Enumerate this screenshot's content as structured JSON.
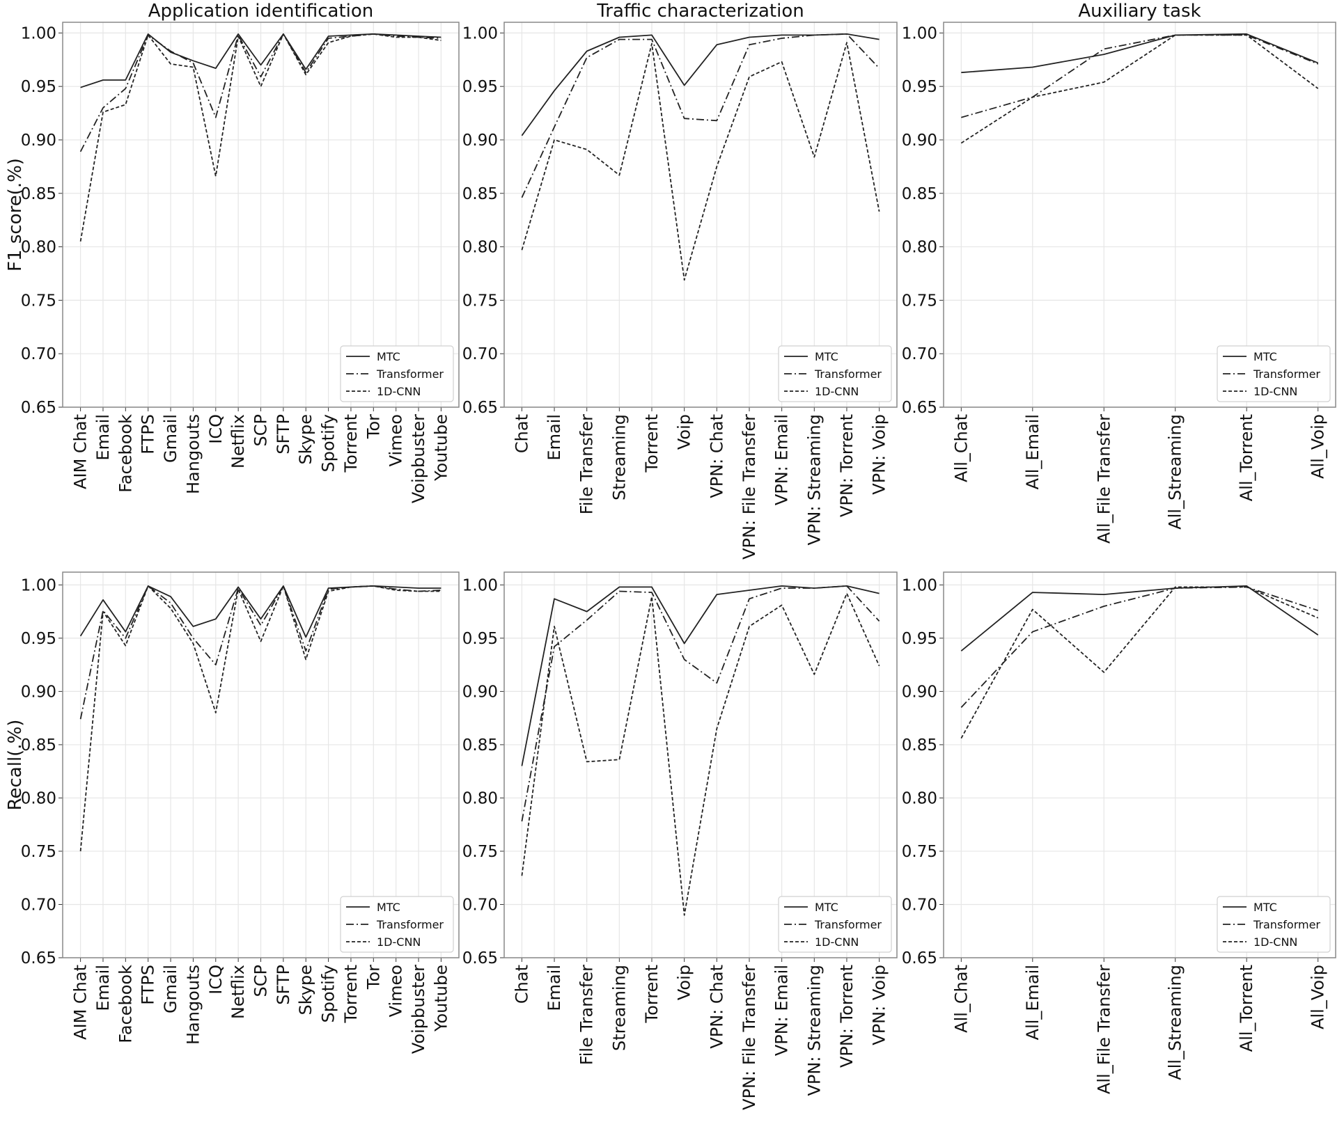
{
  "legend_position": "lower-right",
  "line_color": "#222222",
  "chart_data": [
    {
      "type": "line",
      "title": "Application identification",
      "xlabel": "",
      "ylabel": "F1 score(.%)",
      "ylim": [
        0.65,
        1.01
      ],
      "yticks": [
        "0.65",
        "0.70",
        "0.75",
        "0.80",
        "0.85",
        "0.90",
        "0.95",
        "1.00"
      ],
      "grid": true,
      "categories": [
        "AIM Chat",
        "Email",
        "Facebook",
        "FTPS",
        "Gmail",
        "Hangouts",
        "ICQ",
        "Netflix",
        "SCP",
        "SFTP",
        "Skype",
        "Spotify",
        "Torrent",
        "Tor",
        "Vimeo",
        "Voipbuster",
        "Youtube"
      ],
      "series": [
        {
          "name": "MTC",
          "style": "solid",
          "values": [
            0.949,
            0.956,
            0.956,
            0.999,
            0.982,
            0.974,
            0.967,
            0.999,
            0.97,
            0.999,
            0.966,
            0.997,
            0.998,
            0.999,
            0.998,
            0.997,
            0.996
          ]
        },
        {
          "name": "Transformer",
          "style": "dashdot",
          "values": [
            0.889,
            0.93,
            0.948,
            0.998,
            0.983,
            0.972,
            0.921,
            0.998,
            0.959,
            0.999,
            0.963,
            0.995,
            0.997,
            0.999,
            0.997,
            0.996,
            0.995
          ]
        },
        {
          "name": "1D-CNN",
          "style": "dashed",
          "values": [
            0.805,
            0.926,
            0.933,
            0.998,
            0.971,
            0.968,
            0.866,
            0.997,
            0.95,
            0.999,
            0.961,
            0.991,
            0.997,
            0.999,
            0.996,
            0.996,
            0.993
          ]
        }
      ]
    },
    {
      "type": "line",
      "title": "Traffic characterization",
      "xlabel": "",
      "ylabel": "",
      "ylim": [
        0.65,
        1.01
      ],
      "yticks": [
        "0.65",
        "0.70",
        "0.75",
        "0.80",
        "0.85",
        "0.90",
        "0.95",
        "1.00"
      ],
      "grid": true,
      "categories": [
        "Chat",
        "Email",
        "File Transfer",
        "Streaming",
        "Torrent",
        "Voip",
        "VPN: Chat",
        "VPN: File Transfer",
        "VPN: Email",
        "VPN: Streaming",
        "VPN: Torrent",
        "VPN: Voip"
      ],
      "series": [
        {
          "name": "MTC",
          "style": "solid",
          "values": [
            0.904,
            0.946,
            0.983,
            0.996,
            0.998,
            0.951,
            0.989,
            0.996,
            0.998,
            0.998,
            0.999,
            0.994
          ]
        },
        {
          "name": "Transformer",
          "style": "dashdot",
          "values": [
            0.846,
            0.912,
            0.977,
            0.994,
            0.994,
            0.92,
            0.918,
            0.989,
            0.995,
            0.998,
            0.999,
            0.967
          ]
        },
        {
          "name": "1D-CNN",
          "style": "dashed",
          "values": [
            0.797,
            0.9,
            0.891,
            0.867,
            0.99,
            0.769,
            0.875,
            0.959,
            0.973,
            0.884,
            0.991,
            0.833
          ]
        }
      ]
    },
    {
      "type": "line",
      "title": "Auxiliary task",
      "xlabel": "",
      "ylabel": "",
      "ylim": [
        0.65,
        1.01
      ],
      "yticks": [
        "0.65",
        "0.70",
        "0.75",
        "0.80",
        "0.85",
        "0.90",
        "0.95",
        "1.00"
      ],
      "grid": true,
      "categories": [
        "All_Chat",
        "All_Email",
        "All_File Transfer",
        "All_Streaming",
        "All_Torrent",
        "All_Voip"
      ],
      "series": [
        {
          "name": "MTC",
          "style": "solid",
          "values": [
            0.963,
            0.968,
            0.98,
            0.998,
            0.999,
            0.972
          ]
        },
        {
          "name": "Transformer",
          "style": "dashdot",
          "values": [
            0.921,
            0.94,
            0.985,
            0.998,
            0.998,
            0.971
          ]
        },
        {
          "name": "1D-CNN",
          "style": "dashed",
          "values": [
            0.897,
            0.94,
            0.954,
            0.998,
            0.998,
            0.948
          ]
        }
      ]
    },
    {
      "type": "line",
      "title": "",
      "xlabel": "",
      "ylabel": "Recall(.%)",
      "ylim": [
        0.65,
        1.012
      ],
      "yticks": [
        "0.65",
        "0.70",
        "0.75",
        "0.80",
        "0.85",
        "0.90",
        "0.95",
        "1.00"
      ],
      "grid": true,
      "categories": [
        "AIM Chat",
        "Email",
        "Facebook",
        "FTPS",
        "Gmail",
        "Hangouts",
        "ICQ",
        "Netflix",
        "SCP",
        "SFTP",
        "Skype",
        "Spotify",
        "Torrent",
        "Tor",
        "Vimeo",
        "Voipbuster",
        "Youtube"
      ],
      "series": [
        {
          "name": "MTC",
          "style": "solid",
          "values": [
            0.952,
            0.986,
            0.956,
            0.999,
            0.989,
            0.961,
            0.968,
            0.998,
            0.968,
            0.999,
            0.951,
            0.997,
            0.998,
            0.999,
            0.998,
            0.997,
            0.997
          ]
        },
        {
          "name": "Transformer",
          "style": "dashdot",
          "values": [
            0.874,
            0.976,
            0.95,
            0.999,
            0.983,
            0.95,
            0.925,
            0.997,
            0.962,
            0.999,
            0.938,
            0.996,
            0.998,
            0.999,
            0.996,
            0.994,
            0.995
          ]
        },
        {
          "name": "1D-CNN",
          "style": "dashed",
          "values": [
            0.75,
            0.975,
            0.943,
            0.999,
            0.978,
            0.945,
            0.88,
            0.996,
            0.947,
            0.999,
            0.93,
            0.994,
            0.998,
            0.999,
            0.995,
            0.994,
            0.994
          ]
        }
      ]
    },
    {
      "type": "line",
      "title": "",
      "xlabel": "",
      "ylabel": "",
      "ylim": [
        0.65,
        1.012
      ],
      "yticks": [
        "0.65",
        "0.70",
        "0.75",
        "0.80",
        "0.85",
        "0.90",
        "0.95",
        "1.00"
      ],
      "grid": true,
      "categories": [
        "Chat",
        "Email",
        "File Transfer",
        "Streaming",
        "Torrent",
        "Voip",
        "VPN: Chat",
        "VPN: File Transfer",
        "VPN: Email",
        "VPN: Streaming",
        "VPN: Torrent",
        "VPN: Voip"
      ],
      "series": [
        {
          "name": "MTC",
          "style": "solid",
          "values": [
            0.83,
            0.987,
            0.975,
            0.998,
            0.998,
            0.945,
            0.991,
            0.995,
            0.999,
            0.997,
            0.999,
            0.992
          ]
        },
        {
          "name": "Transformer",
          "style": "dashdot",
          "values": [
            0.778,
            0.942,
            0.967,
            0.994,
            0.993,
            0.93,
            0.908,
            0.987,
            0.997,
            0.997,
            0.999,
            0.966
          ]
        },
        {
          "name": "1D-CNN",
          "style": "dashed",
          "values": [
            0.727,
            0.961,
            0.834,
            0.836,
            0.989,
            0.69,
            0.865,
            0.961,
            0.981,
            0.916,
            0.992,
            0.924
          ]
        }
      ]
    },
    {
      "type": "line",
      "title": "",
      "xlabel": "",
      "ylabel": "",
      "ylim": [
        0.65,
        1.012
      ],
      "yticks": [
        "0.65",
        "0.70",
        "0.75",
        "0.80",
        "0.85",
        "0.90",
        "0.95",
        "1.00"
      ],
      "grid": true,
      "categories": [
        "All_Chat",
        "All_Email",
        "All_File Transfer",
        "All_Streaming",
        "All_Torrent",
        "All_Voip"
      ],
      "series": [
        {
          "name": "MTC",
          "style": "solid",
          "values": [
            0.938,
            0.993,
            0.991,
            0.997,
            0.999,
            0.953
          ]
        },
        {
          "name": "Transformer",
          "style": "dashdot",
          "values": [
            0.885,
            0.956,
            0.98,
            0.997,
            0.998,
            0.976
          ]
        },
        {
          "name": "1D-CNN",
          "style": "dashed",
          "values": [
            0.856,
            0.977,
            0.918,
            0.998,
            0.998,
            0.969
          ]
        }
      ]
    }
  ]
}
